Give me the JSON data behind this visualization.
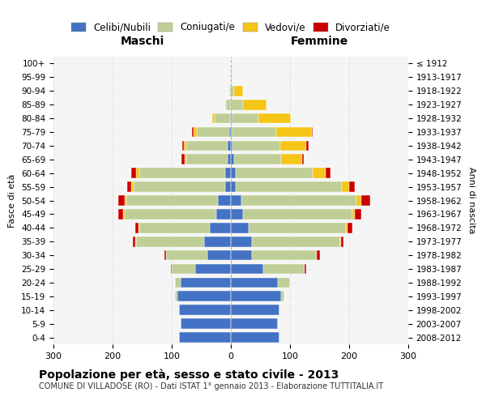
{
  "age_groups": [
    "100+",
    "95-99",
    "90-94",
    "85-89",
    "80-84",
    "75-79",
    "70-74",
    "65-69",
    "60-64",
    "55-59",
    "50-54",
    "45-49",
    "40-44",
    "35-39",
    "30-34",
    "25-29",
    "20-24",
    "15-19",
    "10-14",
    "5-9",
    "0-4"
  ],
  "birth_years": [
    "≤ 1912",
    "1913-1917",
    "1918-1922",
    "1923-1927",
    "1928-1932",
    "1933-1937",
    "1938-1942",
    "1943-1947",
    "1948-1952",
    "1953-1957",
    "1958-1962",
    "1963-1967",
    "1968-1972",
    "1973-1977",
    "1978-1982",
    "1983-1987",
    "1988-1992",
    "1993-1997",
    "1998-2002",
    "2003-2007",
    "2008-2012"
  ],
  "maschi": {
    "celibi": [
      0,
      0,
      0,
      0,
      2,
      3,
      5,
      5,
      10,
      10,
      22,
      25,
      35,
      45,
      40,
      60,
      85,
      90,
      88,
      85,
      88
    ],
    "coniugati": [
      0,
      1,
      3,
      8,
      25,
      55,
      70,
      70,
      145,
      155,
      155,
      155,
      120,
      115,
      70,
      40,
      10,
      5,
      0,
      0,
      0
    ],
    "vedovi": [
      0,
      0,
      0,
      2,
      5,
      5,
      5,
      3,
      5,
      3,
      3,
      2,
      1,
      1,
      0,
      0,
      0,
      0,
      0,
      0,
      0
    ],
    "divorziati": [
      0,
      0,
      0,
      0,
      0,
      3,
      2,
      5,
      8,
      8,
      10,
      8,
      5,
      5,
      3,
      2,
      0,
      0,
      0,
      0,
      0
    ]
  },
  "femmine": {
    "nubili": [
      0,
      0,
      0,
      0,
      2,
      2,
      3,
      5,
      8,
      8,
      18,
      20,
      30,
      35,
      35,
      55,
      80,
      85,
      82,
      80,
      82
    ],
    "coniugate": [
      0,
      1,
      5,
      20,
      45,
      75,
      80,
      80,
      130,
      180,
      195,
      185,
      165,
      150,
      110,
      70,
      20,
      5,
      0,
      0,
      0
    ],
    "vedove": [
      0,
      1,
      15,
      40,
      55,
      60,
      45,
      35,
      22,
      12,
      8,
      5,
      2,
      1,
      0,
      0,
      0,
      0,
      0,
      0,
      0
    ],
    "divorziate": [
      0,
      0,
      0,
      0,
      0,
      2,
      3,
      3,
      8,
      10,
      15,
      10,
      8,
      5,
      5,
      3,
      0,
      0,
      0,
      0,
      0
    ]
  },
  "colors": {
    "celibe": "#4472C4",
    "coniugato": "#BFCE96",
    "vedovo": "#F5C518",
    "divorziato": "#CC0000"
  },
  "title": "Popolazione per età, sesso e stato civile - 2013",
  "subtitle": "COMUNE DI VILLADOSE (RO) - Dati ISTAT 1° gennaio 2013 - Elaborazione TUTTITALIA.IT",
  "xlabel_left": "Maschi",
  "xlabel_right": "Femmine",
  "ylabel_left": "Fasce di età",
  "ylabel_right": "Anni di nascita",
  "xlim": 300,
  "background_color": "#ffffff",
  "grid_color": "#cccccc",
  "legend_labels": [
    "Celibi/Nubili",
    "Coniugati/e",
    "Vedovi/e",
    "Divorziati/e"
  ]
}
